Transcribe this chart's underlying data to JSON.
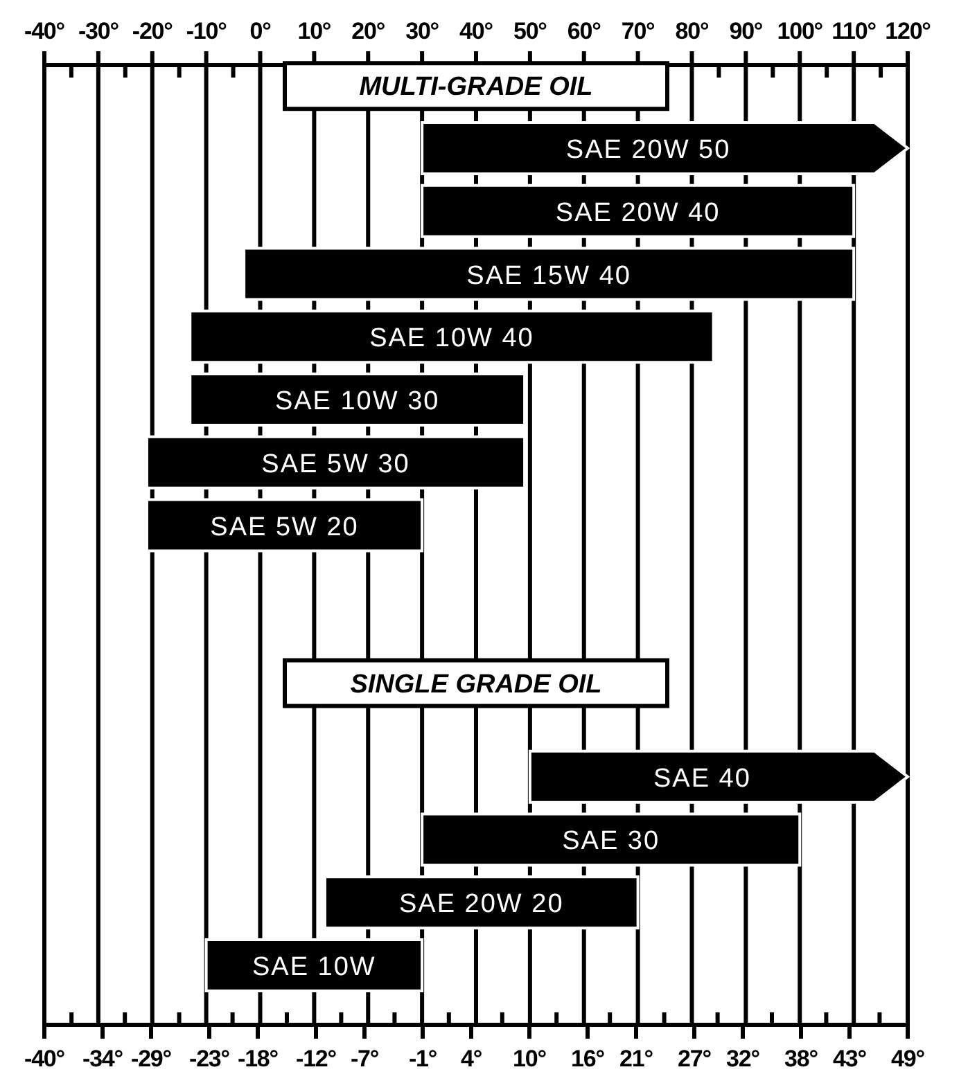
{
  "chart_data": {
    "type": "bar",
    "orientation": "horizontal",
    "annotations": [
      "MULTI-GRADE OIL",
      "SINGLE GRADE OIL"
    ],
    "categories": [
      "SAE 20W 50",
      "SAE 20W 40",
      "SAE 15W 40",
      "SAE 10W 40",
      "SAE 10W 30",
      "SAE 5W 30",
      "SAE 5W 20",
      null,
      null,
      null,
      "SAE 40",
      "SAE 30",
      "SAE 20W 20",
      "SAE 10W"
    ],
    "series": [
      {
        "axis": "x2",
        "color": "#000000",
        "base": [
          30,
          30,
          -3,
          -13,
          -13,
          -21,
          -21,
          null,
          null,
          null,
          50,
          30,
          12,
          -10
        ],
        "values": [
          90,
          80,
          113,
          97,
          62,
          70,
          51,
          null,
          null,
          null,
          70,
          70,
          58,
          40
        ]
      }
    ],
    "xlim": [
      -40,
      49
    ],
    "xticks": [
      {
        "value": -40,
        "label": "-40°"
      },
      {
        "value": -37.2,
        "label": null
      },
      {
        "value": -34,
        "label": "-34°"
      },
      {
        "value": -31.7,
        "label": null
      },
      {
        "value": -29,
        "label": "-29°"
      },
      {
        "value": -26.1,
        "label": null
      },
      {
        "value": -23,
        "label": "-23°"
      },
      {
        "value": -20.6,
        "label": null
      },
      {
        "value": -18,
        "label": "-18°"
      },
      {
        "value": -15,
        "label": null
      },
      {
        "value": -12,
        "label": "-12°"
      },
      {
        "value": -9.4,
        "label": null
      },
      {
        "value": -7,
        "label": "-7°"
      },
      {
        "value": -3.9,
        "label": null
      },
      {
        "value": -1,
        "label": "-1°"
      },
      {
        "value": 1.7,
        "label": null
      },
      {
        "value": 4,
        "label": "4°"
      },
      {
        "value": 7.2,
        "label": null
      },
      {
        "value": 10,
        "label": "10°"
      },
      {
        "value": 12.8,
        "label": null
      },
      {
        "value": 16,
        "label": "16°"
      },
      {
        "value": 18.3,
        "label": null
      },
      {
        "value": 21,
        "label": "21°"
      },
      {
        "value": 23.9,
        "label": null
      },
      {
        "value": 27,
        "label": "27°"
      },
      {
        "value": 29.4,
        "label": null
      },
      {
        "value": 32,
        "label": "32°"
      },
      {
        "value": 35,
        "label": null
      },
      {
        "value": 38,
        "label": "38°"
      },
      {
        "value": 40.6,
        "label": null
      },
      {
        "value": 43,
        "label": "43°"
      },
      {
        "value": 46.1,
        "label": null
      },
      {
        "value": 49,
        "label": "49°"
      }
    ],
    "x2lim": [
      -40,
      120
    ],
    "x2ticks": [
      {
        "value": -40,
        "label": "-40°"
      },
      {
        "value": -35,
        "label": null
      },
      {
        "value": -30,
        "label": "-30°"
      },
      {
        "value": -25,
        "label": null
      },
      {
        "value": -20,
        "label": "-20°"
      },
      {
        "value": -15,
        "label": null
      },
      {
        "value": -10,
        "label": "-10°"
      },
      {
        "value": -5,
        "label": null
      },
      {
        "value": 0,
        "label": "0°"
      },
      {
        "value": 5,
        "label": null
      },
      {
        "value": 10,
        "label": "10°"
      },
      {
        "value": 15,
        "label": null
      },
      {
        "value": 20,
        "label": "20°"
      },
      {
        "value": 25,
        "label": null
      },
      {
        "value": 30,
        "label": "30°"
      },
      {
        "value": 35,
        "label": null
      },
      {
        "value": 40,
        "label": "40°"
      },
      {
        "value": 45,
        "label": null
      },
      {
        "value": 50,
        "label": "50°"
      },
      {
        "value": 55,
        "label": null
      },
      {
        "value": 60,
        "label": "60°"
      },
      {
        "value": 65,
        "label": null
      },
      {
        "value": 70,
        "label": "70°"
      },
      {
        "value": 75,
        "label": null
      },
      {
        "value": 80,
        "label": "80°"
      },
      {
        "value": 85,
        "label": null
      },
      {
        "value": 90,
        "label": "90°"
      },
      {
        "value": 95,
        "label": null
      },
      {
        "value": 100,
        "label": "100°"
      },
      {
        "value": 105,
        "label": null
      },
      {
        "value": 110,
        "label": "110°"
      },
      {
        "value": 115,
        "label": null
      },
      {
        "value": 120,
        "label": "120°"
      }
    ],
    "grid": "x"
  }
}
